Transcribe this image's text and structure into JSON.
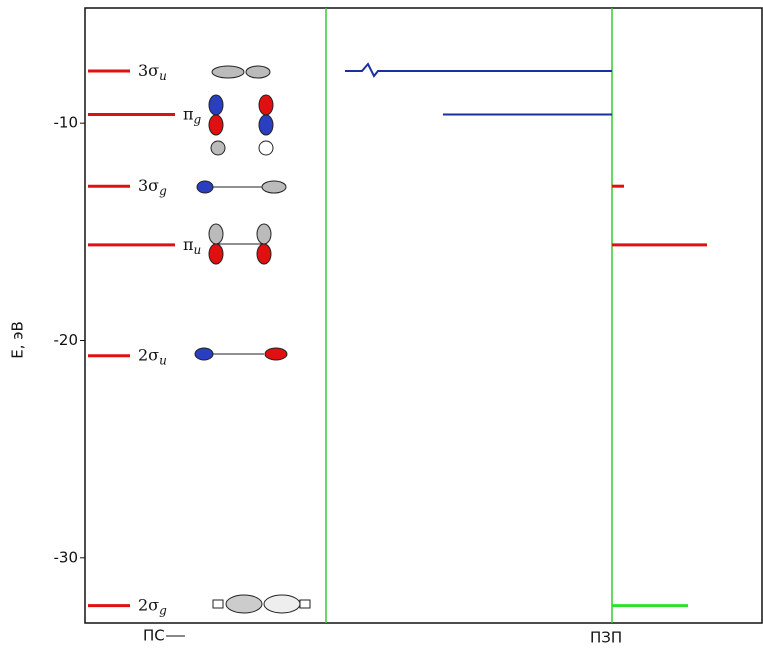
{
  "chart_data": {
    "type": "levels",
    "ylabel": "E, эВ",
    "ylim": [
      -33,
      -4.7
    ],
    "yticks": [
      -30,
      -20,
      -10
    ],
    "xlabels": [
      "ПС",
      "ПЗП"
    ],
    "levels": [
      {
        "name": "3σ",
        "sub": "u",
        "value": -7.6,
        "color": "#e01010"
      },
      {
        "name": "π",
        "sub": "g",
        "value": -9.6,
        "color": "#e01010"
      },
      {
        "name": "3σ",
        "sub": "g",
        "value": -12.9,
        "color": "#e01010"
      },
      {
        "name": "π",
        "sub": "u",
        "value": -15.6,
        "color": "#e01010"
      },
      {
        "name": "2σ",
        "sub": "u",
        "value": -20.7,
        "color": "#e01010"
      },
      {
        "name": "2σ",
        "sub": "g",
        "value": -32.2,
        "color": "#e01010"
      }
    ],
    "right_levels": [
      {
        "value": -7.6,
        "color": "#1a2fa0"
      },
      {
        "value": -9.6,
        "color": "#1a2fa0"
      },
      {
        "value": -12.9,
        "color": "#e01010"
      },
      {
        "value": -15.6,
        "color": "#e01010"
      },
      {
        "value": -32.2,
        "color": "#2ee02e"
      }
    ]
  }
}
